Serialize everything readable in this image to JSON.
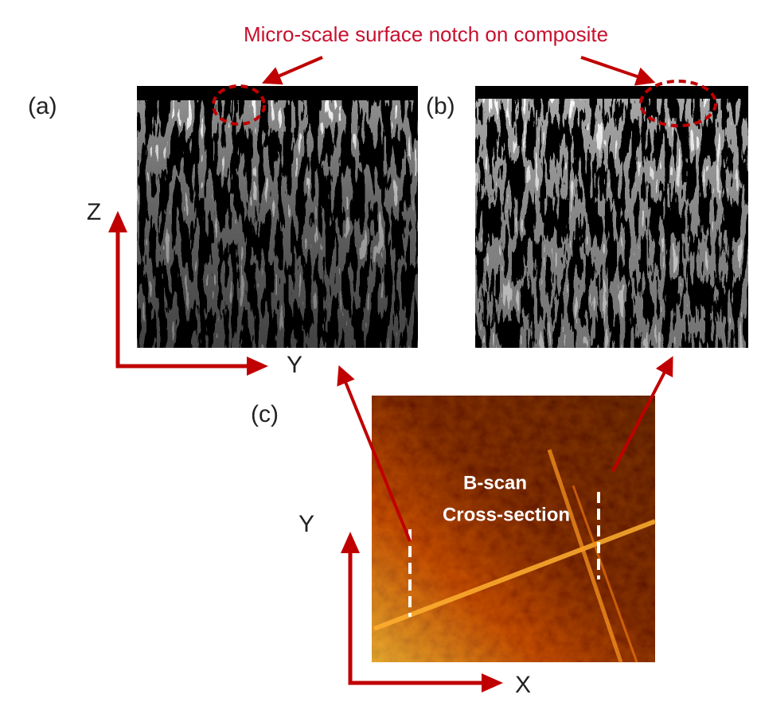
{
  "annotation": "Micro-scale surface notch on composite",
  "panels": [
    {
      "label": "(a)"
    },
    {
      "label": "(b)"
    },
    {
      "label": "(c)"
    }
  ],
  "axes_bscan": {
    "vertical": "Z",
    "horizontal": "Y"
  },
  "axes_top": {
    "vertical": "Y",
    "horizontal": "X"
  },
  "scan_label": {
    "line1": "B-scan",
    "line2": "Cross-section"
  }
}
